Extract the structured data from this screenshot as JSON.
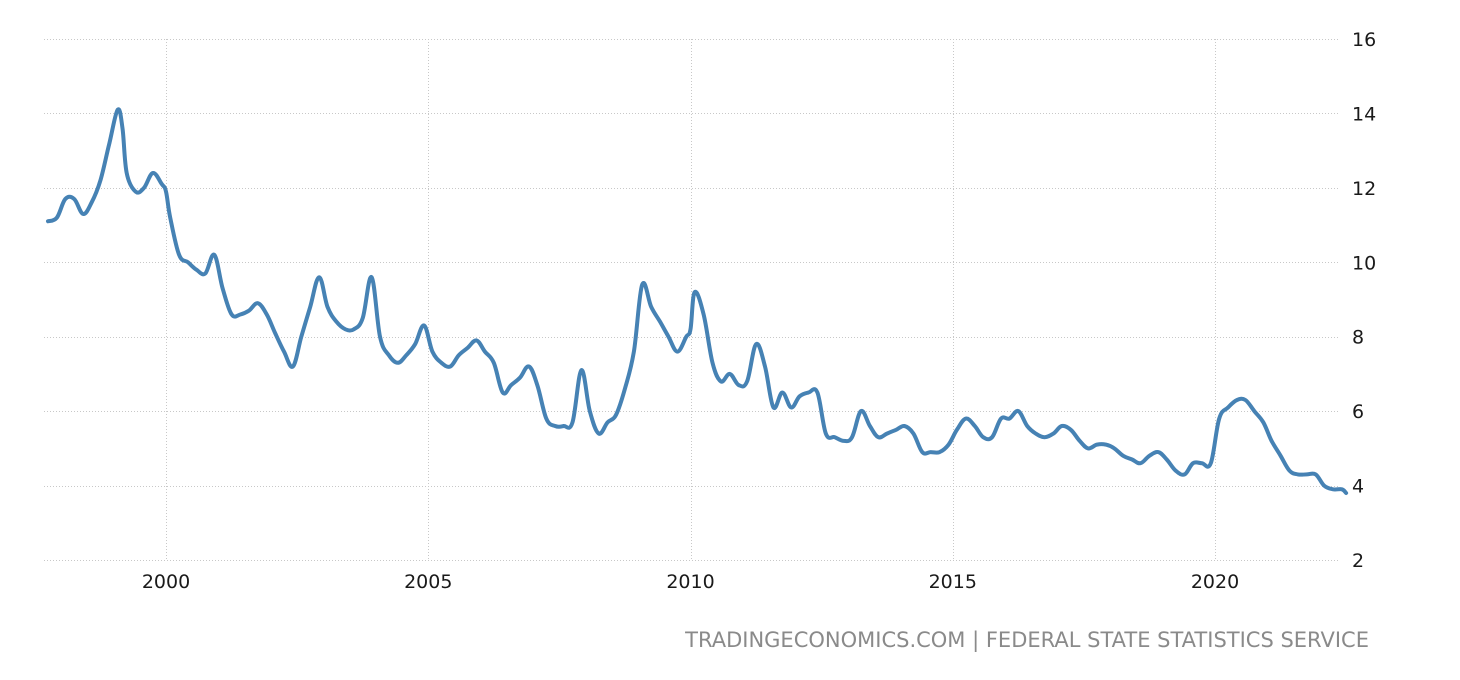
{
  "chart_data": {
    "type": "line",
    "title": "",
    "xlabel": "",
    "ylabel": "",
    "xlim": [
      1997.75,
      2022.5
    ],
    "ylim": [
      2,
      16
    ],
    "x_ticks": [
      2000,
      2005,
      2010,
      2015,
      2020
    ],
    "x_tick_labels": [
      "2000",
      "2005",
      "2010",
      "2015",
      "2020"
    ],
    "y_ticks": [
      2,
      4,
      6,
      8,
      10,
      12,
      14,
      16
    ],
    "y_tick_labels": [
      "2",
      "4",
      "6",
      "8",
      "10",
      "12",
      "14",
      "16"
    ],
    "grid": true,
    "legend": "none",
    "colors": {
      "line": "#4682b4",
      "grid": "#c8c8c8",
      "text": "#1a1a1a",
      "source": "#8a8a8a"
    },
    "series": [
      {
        "x": [
          1997.75,
          1997.92,
          1998.08,
          1998.25,
          1998.42,
          1998.58,
          1998.75,
          1998.92,
          1999.08,
          1999.17,
          1999.25,
          1999.42,
          1999.58,
          1999.75,
          1999.92,
          2000.0,
          2000.08,
          2000.25,
          2000.42,
          2000.58,
          2000.75,
          2000.92,
          2001.08,
          2001.25,
          2001.42,
          2001.58,
          2001.75,
          2001.92,
          2002.08,
          2002.25,
          2002.42,
          2002.58,
          2002.75,
          2002.92,
          2003.08,
          2003.25,
          2003.42,
          2003.58,
          2003.75,
          2003.92,
          2004.08,
          2004.25,
          2004.42,
          2004.58,
          2004.75,
          2004.92,
          2005.08,
          2005.25,
          2005.42,
          2005.58,
          2005.75,
          2005.92,
          2006.08,
          2006.25,
          2006.42,
          2006.58,
          2006.75,
          2006.92,
          2007.08,
          2007.25,
          2007.42,
          2007.58,
          2007.75,
          2007.92,
          2008.08,
          2008.25,
          2008.42,
          2008.58,
          2008.75,
          2008.92,
          2009.08,
          2009.25,
          2009.42,
          2009.58,
          2009.75,
          2009.92,
          2010.0,
          2010.08,
          2010.25,
          2010.42,
          2010.58,
          2010.75,
          2010.92,
          2011.08,
          2011.25,
          2011.42,
          2011.58,
          2011.75,
          2011.92,
          2012.08,
          2012.25,
          2012.42,
          2012.58,
          2012.75,
          2012.92,
          2013.08,
          2013.25,
          2013.42,
          2013.58,
          2013.75,
          2013.92,
          2014.08,
          2014.25,
          2014.42,
          2014.58,
          2014.75,
          2014.92,
          2015.08,
          2015.25,
          2015.42,
          2015.58,
          2015.75,
          2015.92,
          2016.08,
          2016.25,
          2016.42,
          2016.58,
          2016.75,
          2016.92,
          2017.08,
          2017.25,
          2017.42,
          2017.58,
          2017.75,
          2017.92,
          2018.08,
          2018.25,
          2018.42,
          2018.58,
          2018.75,
          2018.92,
          2019.08,
          2019.25,
          2019.42,
          2019.58,
          2019.75,
          2019.92,
          2020.08,
          2020.25,
          2020.42,
          2020.58,
          2020.75,
          2020.92,
          2021.08,
          2021.25,
          2021.42,
          2021.58,
          2021.75,
          2021.92,
          2022.08,
          2022.25,
          2022.42,
          2022.5
        ],
        "values": [
          11.1,
          11.2,
          11.7,
          11.7,
          11.3,
          11.6,
          12.2,
          13.2,
          14.1,
          13.6,
          12.4,
          11.9,
          12.0,
          12.4,
          12.1,
          11.9,
          11.2,
          10.2,
          10.0,
          9.8,
          9.7,
          10.2,
          9.3,
          8.6,
          8.6,
          8.7,
          8.9,
          8.6,
          8.1,
          7.6,
          7.2,
          8.0,
          8.8,
          9.6,
          8.8,
          8.4,
          8.2,
          8.2,
          8.5,
          9.6,
          8.0,
          7.5,
          7.3,
          7.5,
          7.8,
          8.3,
          7.6,
          7.3,
          7.2,
          7.5,
          7.7,
          7.9,
          7.6,
          7.3,
          6.5,
          6.7,
          6.9,
          7.2,
          6.7,
          5.8,
          5.6,
          5.6,
          5.7,
          7.1,
          6.0,
          5.4,
          5.7,
          5.9,
          6.6,
          7.6,
          9.4,
          8.8,
          8.4,
          8.0,
          7.6,
          8.0,
          8.2,
          9.2,
          8.6,
          7.3,
          6.8,
          7.0,
          6.7,
          6.8,
          7.8,
          7.2,
          6.1,
          6.5,
          6.1,
          6.4,
          6.5,
          6.5,
          5.4,
          5.3,
          5.2,
          5.3,
          6.0,
          5.6,
          5.3,
          5.4,
          5.5,
          5.6,
          5.4,
          4.9,
          4.9,
          4.9,
          5.1,
          5.5,
          5.8,
          5.6,
          5.3,
          5.3,
          5.8,
          5.8,
          6.0,
          5.6,
          5.4,
          5.3,
          5.4,
          5.6,
          5.5,
          5.2,
          5.0,
          5.1,
          5.1,
          5.0,
          4.8,
          4.7,
          4.6,
          4.8,
          4.9,
          4.7,
          4.4,
          4.3,
          4.6,
          4.6,
          4.6,
          5.8,
          6.1,
          6.3,
          6.3,
          6.0,
          5.7,
          5.2,
          4.8,
          4.4,
          4.3,
          4.3,
          4.3,
          4.0,
          3.9,
          3.9,
          3.8
        ]
      }
    ]
  },
  "source_text": "TRADINGECONOMICS.COM | FEDERAL STATE STATISTICS SERVICE"
}
